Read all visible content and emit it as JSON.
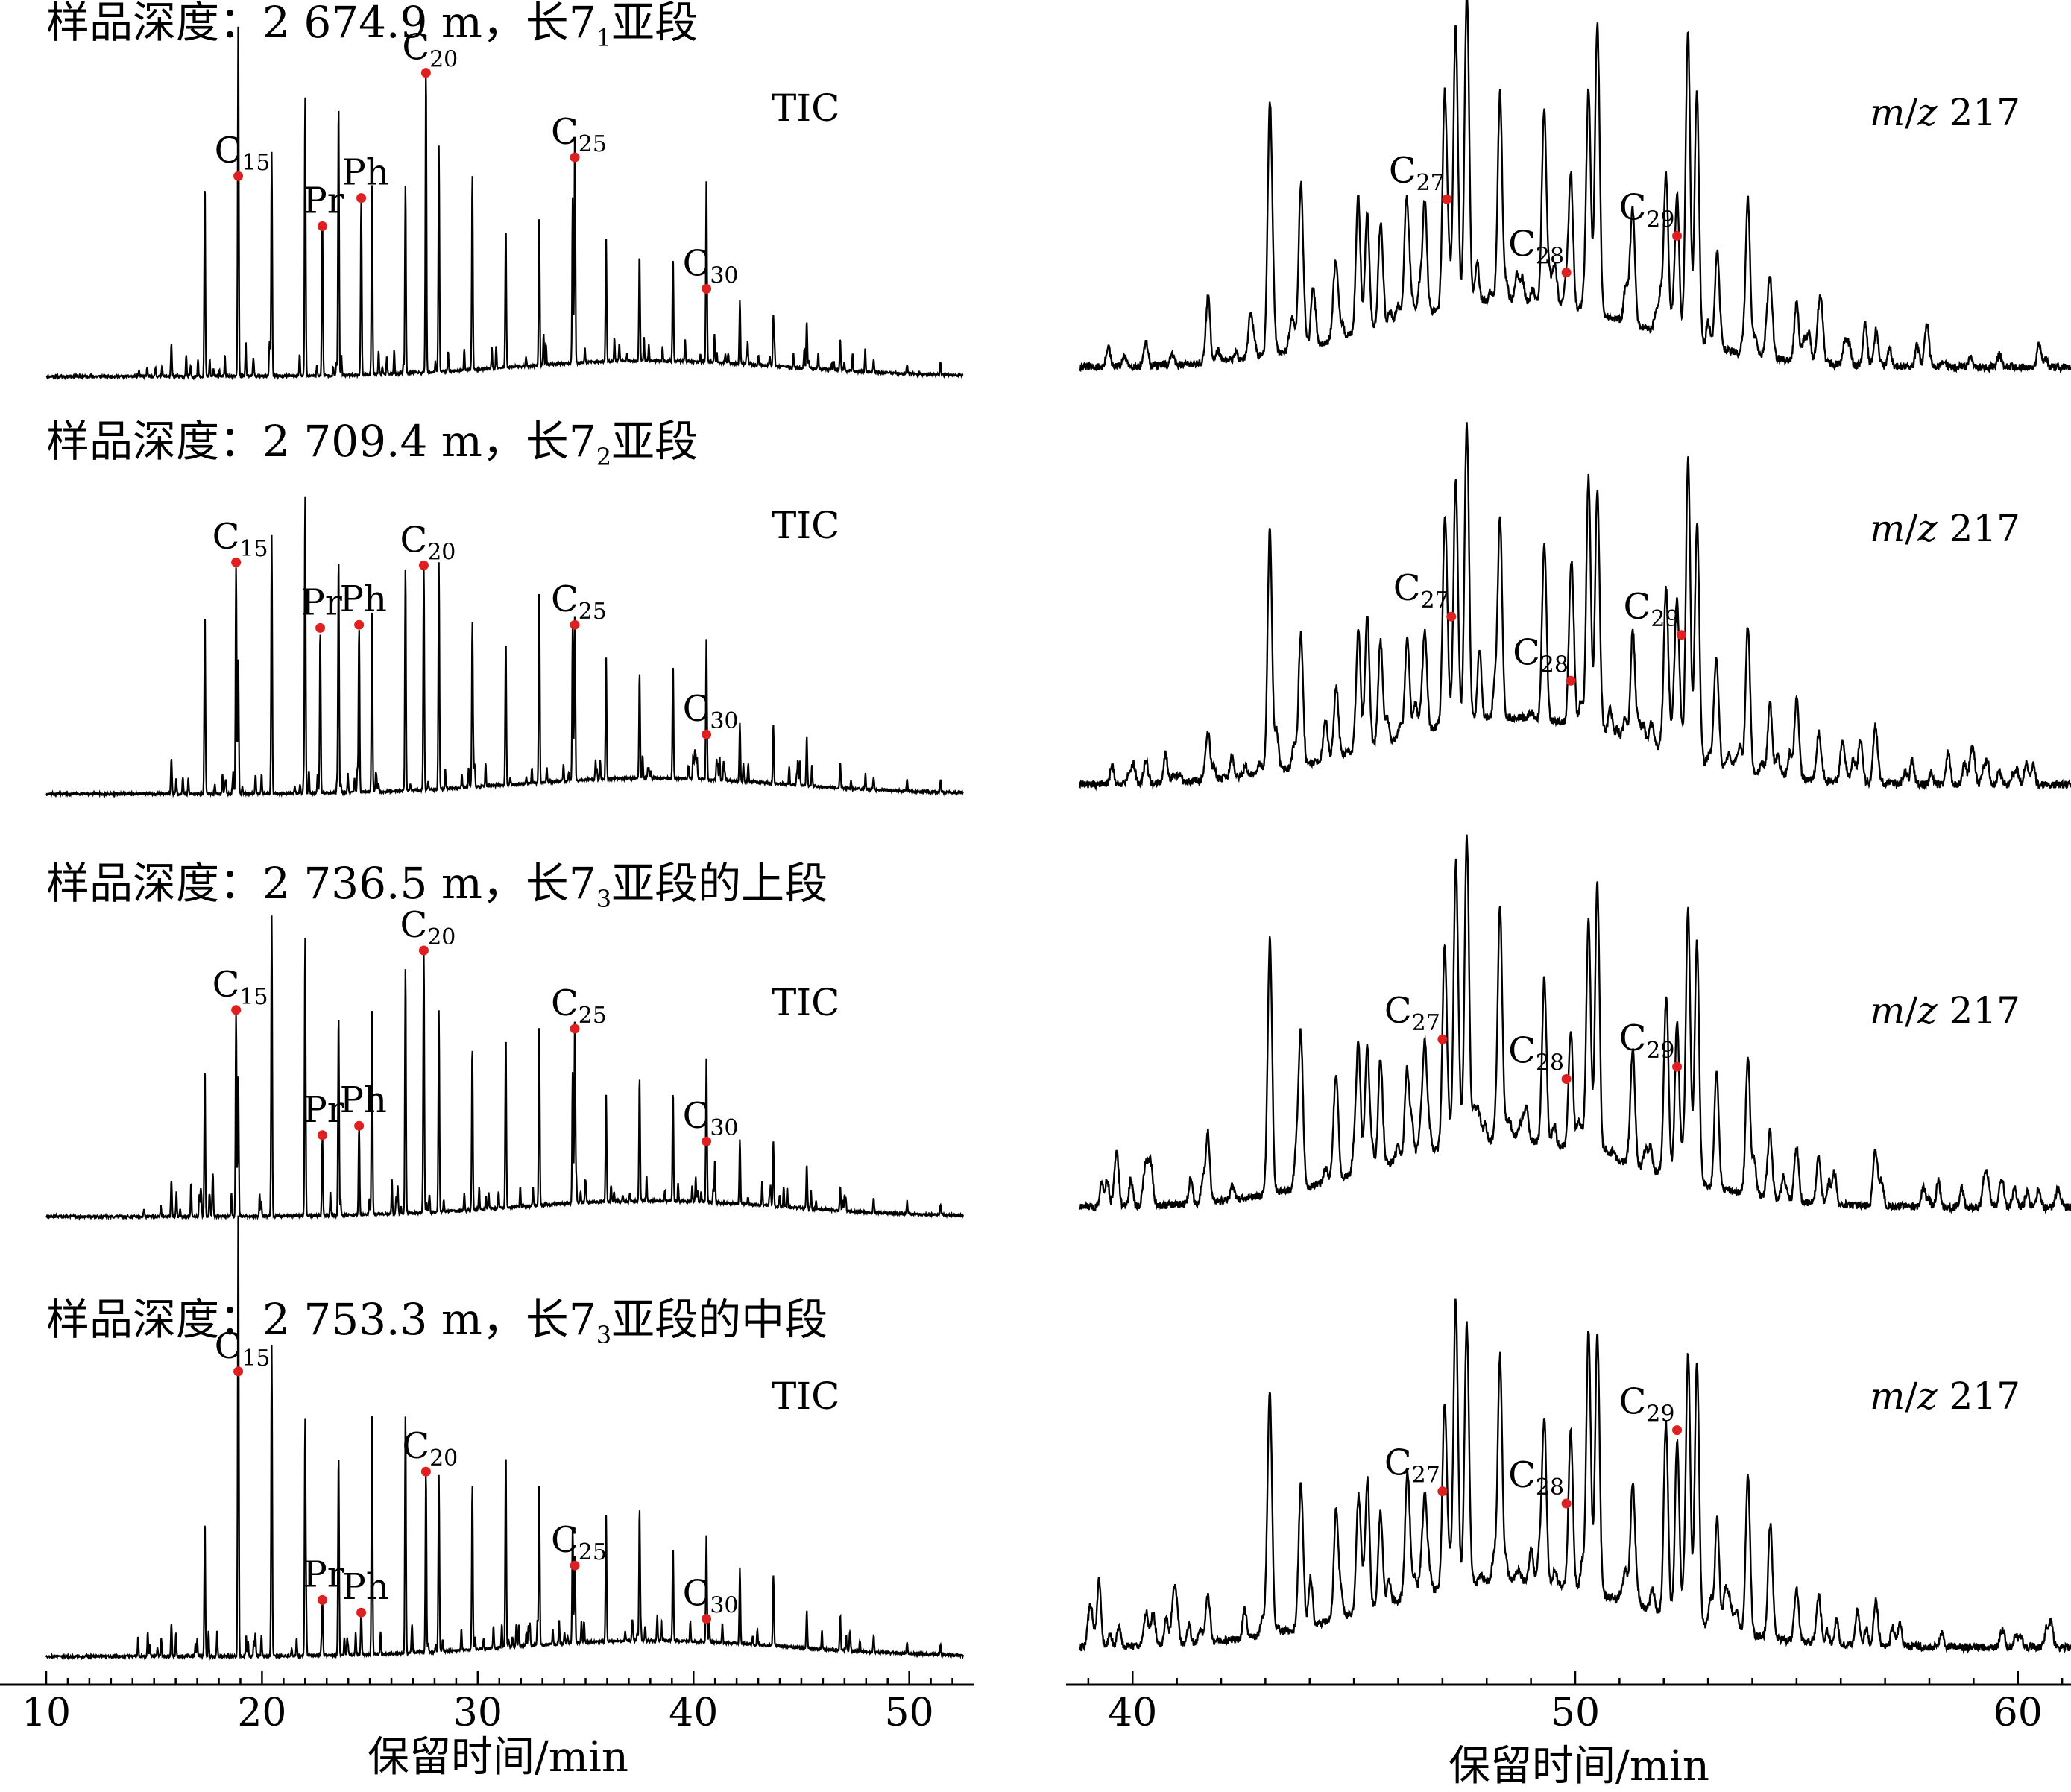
{
  "colors": {
    "trace": "#000000",
    "marker": "#e02020",
    "axis": "#000000"
  },
  "panels": [
    {
      "title_parts": [
        "样品深度：2 674.9 m，长7",
        "1",
        "亚段"
      ],
      "tic": {
        "label": "TIC",
        "peaks": [
          {
            "label": "C",
            "sub": "15",
            "rt": 18.9,
            "height": 0.64
          },
          {
            "label": "Pr",
            "sub": "",
            "rt": 22.8,
            "height": 0.48
          },
          {
            "label": "Ph",
            "sub": "",
            "rt": 24.6,
            "height": 0.57
          },
          {
            "label": "C",
            "sub": "20",
            "rt": 27.6,
            "height": 0.97
          },
          {
            "label": "C",
            "sub": "25",
            "rt": 34.5,
            "height": 0.7
          },
          {
            "label": "C",
            "sub": "30",
            "rt": 40.6,
            "height": 0.28
          }
        ]
      },
      "mz": {
        "label_parts": [
          "m",
          "/",
          "z",
          " 217"
        ],
        "peaks": [
          {
            "label": "C",
            "sub": "27",
            "rt": 47.1,
            "height": 0.58
          },
          {
            "label": "C",
            "sub": "28",
            "rt": 49.8,
            "height": 0.34
          },
          {
            "label": "C",
            "sub": "29",
            "rt": 52.3,
            "height": 0.46
          }
        ]
      }
    },
    {
      "title_parts": [
        "样品深度：2 709.4 m，长7",
        "2",
        "亚段"
      ],
      "tic": {
        "label": "TIC",
        "peaks": [
          {
            "label": "C",
            "sub": "15",
            "rt": 18.8,
            "height": 0.74
          },
          {
            "label": "Pr",
            "sub": "",
            "rt": 22.7,
            "height": 0.53
          },
          {
            "label": "Ph",
            "sub": "",
            "rt": 24.5,
            "height": 0.54
          },
          {
            "label": "C",
            "sub": "20",
            "rt": 27.5,
            "height": 0.73
          },
          {
            "label": "C",
            "sub": "25",
            "rt": 34.5,
            "height": 0.54
          },
          {
            "label": "C",
            "sub": "30",
            "rt": 40.6,
            "height": 0.19
          }
        ]
      },
      "mz": {
        "label_parts": [
          "m",
          "/",
          "z",
          " 217"
        ],
        "peaks": [
          {
            "label": "C",
            "sub": "27",
            "rt": 47.2,
            "height": 0.58
          },
          {
            "label": "C",
            "sub": "28",
            "rt": 49.9,
            "height": 0.37
          },
          {
            "label": "C",
            "sub": "29",
            "rt": 52.4,
            "height": 0.52
          }
        ]
      }
    },
    {
      "title_parts": [
        "样品深度：2 736.5 m，长7",
        "3",
        "亚段的上段"
      ],
      "tic": {
        "label": "TIC",
        "peaks": [
          {
            "label": "C",
            "sub": "15",
            "rt": 18.8,
            "height": 0.66
          },
          {
            "label": "Pr",
            "sub": "",
            "rt": 22.8,
            "height": 0.26
          },
          {
            "label": "Ph",
            "sub": "",
            "rt": 24.5,
            "height": 0.29
          },
          {
            "label": "C",
            "sub": "20",
            "rt": 27.5,
            "height": 0.85
          },
          {
            "label": "C",
            "sub": "25",
            "rt": 34.5,
            "height": 0.6
          },
          {
            "label": "C",
            "sub": "30",
            "rt": 40.6,
            "height": 0.24
          }
        ]
      },
      "mz": {
        "label_parts": [
          "m",
          "/",
          "z",
          " 217"
        ],
        "peaks": [
          {
            "label": "C",
            "sub": "27",
            "rt": 47.0,
            "height": 0.58
          },
          {
            "label": "C",
            "sub": "28",
            "rt": 49.8,
            "height": 0.45
          },
          {
            "label": "C",
            "sub": "29",
            "rt": 52.3,
            "height": 0.49
          }
        ]
      }
    },
    {
      "title_parts": [
        "样品深度：2 753.3 m，长7",
        "3",
        "亚段的中段"
      ],
      "tic": {
        "label": "TIC",
        "peaks": [
          {
            "label": "C",
            "sub": "15",
            "rt": 18.9,
            "height": 0.91
          },
          {
            "label": "Pr",
            "sub": "",
            "rt": 22.8,
            "height": 0.18
          },
          {
            "label": "Ph",
            "sub": "",
            "rt": 24.6,
            "height": 0.14
          },
          {
            "label": "C",
            "sub": "20",
            "rt": 27.6,
            "height": 0.59
          },
          {
            "label": "C",
            "sub": "25",
            "rt": 34.5,
            "height": 0.29
          },
          {
            "label": "C",
            "sub": "30",
            "rt": 40.6,
            "height": 0.12
          }
        ]
      },
      "mz": {
        "label_parts": [
          "m",
          "/",
          "z",
          " 217"
        ],
        "peaks": [
          {
            "label": "C",
            "sub": "27",
            "rt": 47.0,
            "height": 0.54
          },
          {
            "label": "C",
            "sub": "28",
            "rt": 49.8,
            "height": 0.5
          },
          {
            "label": "C",
            "sub": "29",
            "rt": 52.3,
            "height": 0.74
          }
        ]
      }
    }
  ],
  "chart_data": [
    {
      "type": "line",
      "name_note": "TIC chromatograms",
      "xlabel": "保留时间/min",
      "xlim": [
        10,
        52.5
      ],
      "xticks": [
        10,
        20,
        30,
        40,
        50
      ],
      "grid": false
    },
    {
      "type": "line",
      "name_note": "m/z 217 mass chromatograms",
      "xlabel": "保留时间/min",
      "xlim": [
        38.8,
        61.2
      ],
      "xticks": [
        40,
        50,
        60
      ],
      "grid": false
    }
  ]
}
